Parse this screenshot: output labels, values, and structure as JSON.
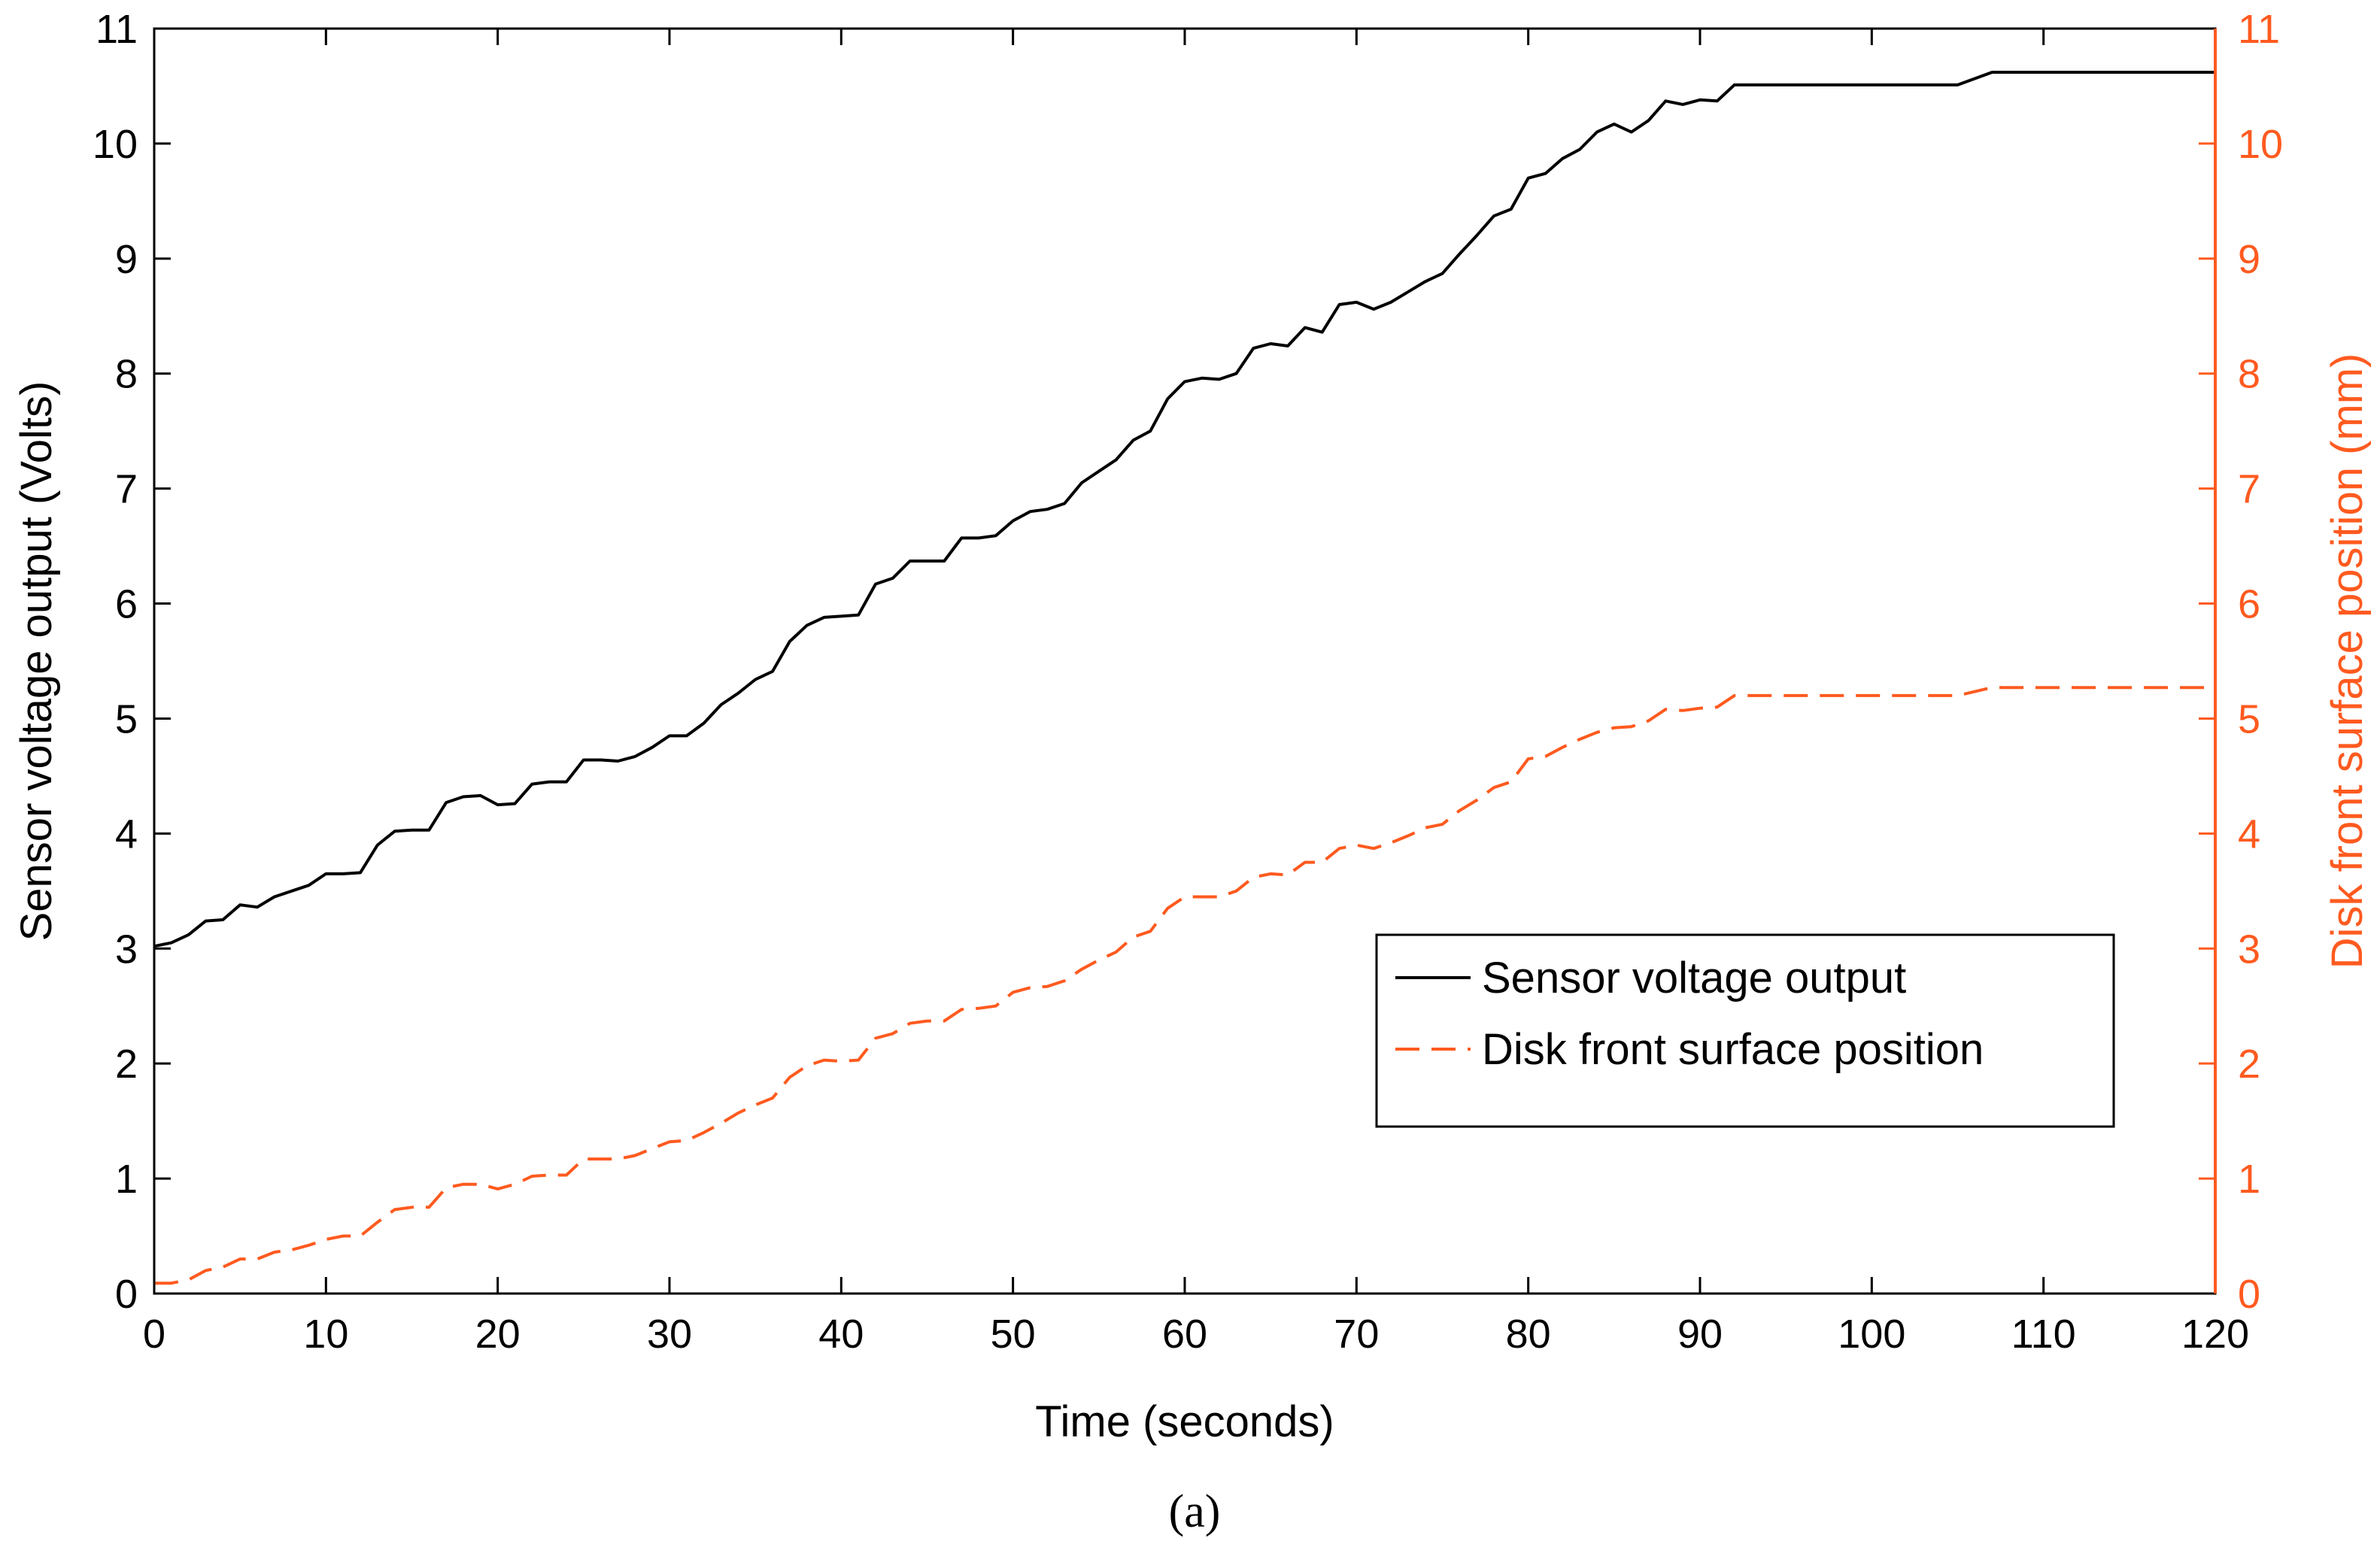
{
  "chart_data": {
    "type": "line",
    "caption": "(a)",
    "xlabel": "Time (seconds)",
    "ylabel_left": "Sensor voltage output (Volts)",
    "ylabel_right": "Disk front surface position (mm)",
    "xlim": [
      0,
      120
    ],
    "ylim_left": [
      0,
      11
    ],
    "ylim_right": [
      0,
      11
    ],
    "x_ticks": [
      0,
      10,
      20,
      30,
      40,
      50,
      60,
      70,
      80,
      90,
      100,
      110,
      120
    ],
    "y_ticks_left": [
      0,
      1,
      2,
      3,
      4,
      5,
      6,
      7,
      8,
      9,
      10,
      11
    ],
    "y_ticks_right": [
      0,
      1,
      2,
      3,
      4,
      5,
      6,
      7,
      8,
      9,
      10,
      11
    ],
    "grid": false,
    "legend_position": "lower-right",
    "colors": {
      "voltage": "#000000",
      "position": "#ff5a1f",
      "right_axis": "#ff5a1f"
    },
    "series": [
      {
        "name": "Sensor voltage output",
        "axis": "left",
        "style": "solid",
        "x": [
          0,
          1,
          2,
          3,
          4,
          5,
          6,
          7,
          8,
          9,
          10,
          11,
          12,
          13,
          14,
          15,
          16,
          17,
          18,
          19,
          20,
          21,
          22,
          23,
          24,
          25,
          26,
          27,
          28,
          29,
          30,
          31,
          32,
          33,
          34,
          35,
          36,
          37,
          38,
          39,
          40,
          41,
          42,
          43,
          44,
          45,
          46,
          47,
          48,
          49,
          50,
          51,
          52,
          53,
          54,
          55,
          56,
          57,
          58,
          59,
          60,
          61,
          62,
          63,
          64,
          65,
          66,
          67,
          68,
          69,
          70,
          71,
          72,
          73,
          74,
          75,
          76,
          77,
          78,
          79,
          80,
          81,
          82,
          83,
          84,
          85,
          86,
          87,
          88,
          89,
          90,
          91,
          92,
          105,
          107,
          120
        ],
        "values": [
          3.02,
          3.05,
          3.12,
          3.24,
          3.25,
          3.38,
          3.36,
          3.45,
          3.5,
          3.55,
          3.65,
          3.65,
          3.66,
          3.9,
          4.02,
          4.03,
          4.03,
          4.27,
          4.32,
          4.33,
          4.25,
          4.26,
          4.43,
          4.45,
          4.45,
          4.64,
          4.64,
          4.63,
          4.67,
          4.75,
          4.85,
          4.85,
          4.96,
          5.12,
          5.22,
          5.34,
          5.41,
          5.67,
          5.81,
          5.88,
          5.89,
          5.9,
          6.17,
          6.22,
          6.37,
          6.37,
          6.37,
          6.57,
          6.57,
          6.59,
          6.72,
          6.8,
          6.82,
          6.87,
          7.05,
          7.15,
          7.25,
          7.42,
          7.5,
          7.78,
          7.93,
          7.96,
          7.95,
          8.0,
          8.22,
          8.26,
          8.24,
          8.4,
          8.36,
          8.6,
          8.62,
          8.56,
          8.62,
          8.71,
          8.8,
          8.87,
          9.04,
          9.2,
          9.37,
          9.43,
          9.7,
          9.74,
          9.87,
          9.95,
          10.1,
          10.17,
          10.1,
          10.2,
          10.37,
          10.34,
          10.38,
          10.37,
          10.51,
          10.51,
          10.62,
          10.62
        ]
      },
      {
        "name": "Disk front surface position",
        "axis": "right",
        "style": "dashed",
        "x": [
          0,
          1,
          2,
          3,
          4,
          5,
          6,
          7,
          8,
          9,
          10,
          11,
          12,
          13,
          14,
          15,
          16,
          17,
          18,
          19,
          20,
          21,
          22,
          23,
          24,
          25,
          26,
          27,
          28,
          29,
          30,
          31,
          32,
          33,
          34,
          35,
          36,
          37,
          38,
          39,
          40,
          41,
          42,
          43,
          44,
          45,
          46,
          47,
          48,
          49,
          50,
          51,
          52,
          53,
          54,
          55,
          56,
          57,
          58,
          59,
          60,
          61,
          62,
          63,
          64,
          65,
          66,
          67,
          68,
          69,
          70,
          71,
          72,
          73,
          74,
          75,
          76,
          77,
          78,
          79,
          80,
          81,
          82,
          83,
          84,
          85,
          86,
          87,
          88,
          89,
          90,
          91,
          92,
          105,
          107,
          120
        ],
        "values": [
          0.09,
          0.09,
          0.12,
          0.2,
          0.23,
          0.3,
          0.3,
          0.36,
          0.38,
          0.42,
          0.47,
          0.5,
          0.5,
          0.62,
          0.73,
          0.75,
          0.75,
          0.92,
          0.95,
          0.95,
          0.91,
          0.95,
          1.02,
          1.03,
          1.03,
          1.17,
          1.17,
          1.17,
          1.2,
          1.26,
          1.32,
          1.33,
          1.4,
          1.48,
          1.57,
          1.64,
          1.7,
          1.88,
          1.98,
          2.03,
          2.02,
          2.03,
          2.22,
          2.26,
          2.35,
          2.37,
          2.37,
          2.47,
          2.48,
          2.5,
          2.62,
          2.66,
          2.67,
          2.72,
          2.82,
          2.9,
          2.97,
          3.1,
          3.15,
          3.35,
          3.45,
          3.45,
          3.45,
          3.5,
          3.62,
          3.65,
          3.64,
          3.75,
          3.75,
          3.87,
          3.9,
          3.87,
          3.92,
          3.98,
          4.05,
          4.08,
          4.2,
          4.29,
          4.4,
          4.45,
          4.65,
          4.67,
          4.75,
          4.82,
          4.88,
          4.92,
          4.93,
          4.98,
          5.08,
          5.07,
          5.09,
          5.1,
          5.2,
          5.2,
          5.27,
          5.27
        ]
      }
    ]
  },
  "legend": {
    "items": [
      {
        "label": "Sensor voltage output",
        "style": "solid",
        "color": "#000000"
      },
      {
        "label": "Disk front surface position",
        "style": "dashed",
        "color": "#ff5a1f"
      }
    ]
  }
}
